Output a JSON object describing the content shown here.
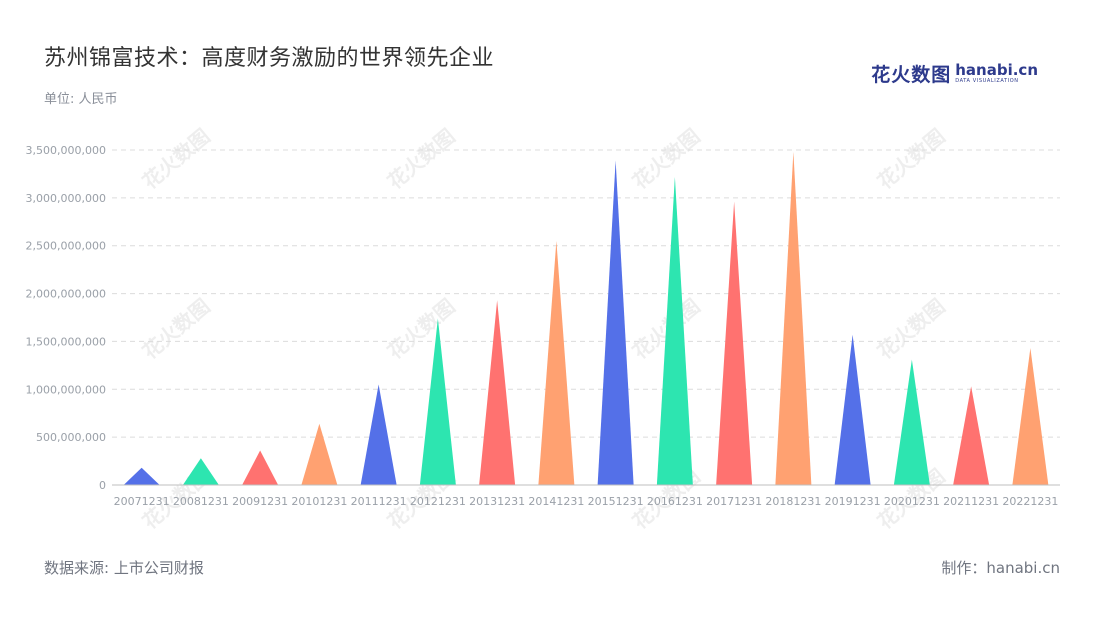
{
  "header": {
    "title": "苏州锦富技术：高度财务激励的世界领先企业",
    "unit": "单位: 人民币"
  },
  "logo": {
    "cn": "花火数图",
    "en": "hanabi.cn",
    "sub": "DATA VISUALIZATION"
  },
  "footer": {
    "source": "数据来源: 上市公司财报",
    "maker": "制作：hanabi.cn"
  },
  "watermark": "花火数图",
  "chart_data": {
    "type": "bar",
    "bar_shape": "triangle",
    "categories": [
      "20071231",
      "20081231",
      "20091231",
      "20101231",
      "20111231",
      "20121231",
      "20131231",
      "20141231",
      "20151231",
      "20161231",
      "20171231",
      "20181231",
      "20191231",
      "20201231",
      "20211231",
      "20221231"
    ],
    "values": [
      180000000,
      280000000,
      360000000,
      640000000,
      1050000000,
      1740000000,
      1930000000,
      2550000000,
      3390000000,
      3220000000,
      2960000000,
      3480000000,
      1570000000,
      1310000000,
      1030000000,
      1430000000
    ],
    "ylim": [
      0,
      3500000000
    ],
    "yticks": [
      0,
      500000000,
      1000000000,
      1500000000,
      2000000000,
      2500000000,
      3000000000,
      3500000000
    ],
    "ytick_labels": [
      "0",
      "500,000,000",
      "1,000,000,000",
      "1,500,000,000",
      "2,000,000,000",
      "2,500,000,000",
      "3,000,000,000",
      "3,500,000,000"
    ],
    "palette": [
      "#5470e8",
      "#2de5b0",
      "#ff7270",
      "#ffa171"
    ],
    "grid": true,
    "legend": "none"
  }
}
